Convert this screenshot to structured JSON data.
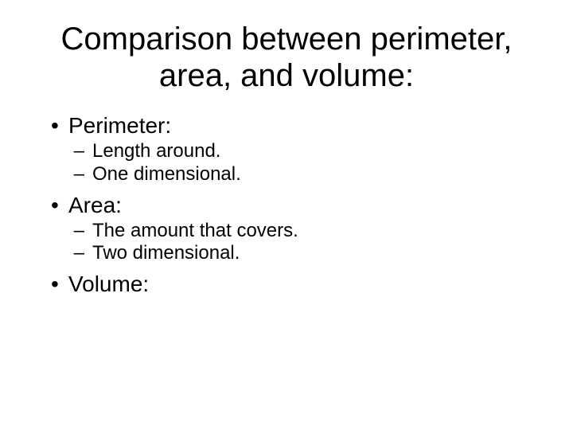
{
  "background_color": "#ffffff",
  "text_color": "#000000",
  "font_family": "Arial",
  "title": {
    "text": "Comparison between perimeter, area, and volume:",
    "fontsize": 40,
    "align": "center"
  },
  "bullets": {
    "level1_fontsize": 28,
    "level2_fontsize": 24,
    "level1_marker": "•",
    "level2_marker": "–",
    "items": [
      {
        "label": "Perimeter:",
        "sub": [
          "Length around.",
          "One dimensional."
        ]
      },
      {
        "label": "Area:",
        "sub": [
          "The amount that covers.",
          "Two dimensional."
        ]
      },
      {
        "label": "Volume:",
        "sub": []
      }
    ]
  }
}
